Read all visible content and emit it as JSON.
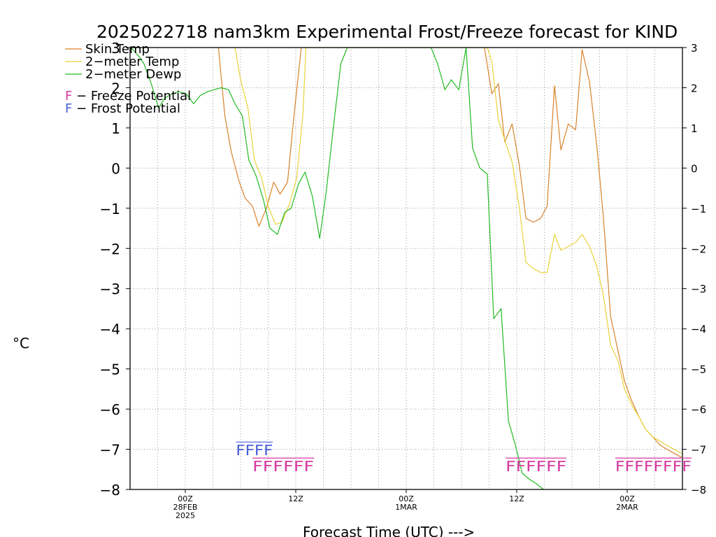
{
  "chart_data": {
    "type": "line",
    "title": "2025022718 nam3km Experimental Frost/Freeze forecast for KIND",
    "xlabel": "Forecast Time (UTC) --->",
    "ylabel": "°C",
    "ylim": [
      -8,
      3
    ],
    "xlim": [
      -6,
      54
    ],
    "x_unit": "hours since 00Z 28FEB 2025",
    "yticks": [
      "-8",
      "-7",
      "-6",
      "-5",
      "-4",
      "-3",
      "-2",
      "-1",
      "0",
      "1",
      "2",
      "3"
    ],
    "xticks": [
      {
        "x": 0,
        "label": "00Z",
        "sub1": "28FEB",
        "sub2": "2025"
      },
      {
        "x": 12,
        "label": "12Z",
        "sub1": "",
        "sub2": ""
      },
      {
        "x": 24,
        "label": "00Z",
        "sub1": "1MAR",
        "sub2": ""
      },
      {
        "x": 36,
        "label": "12Z",
        "sub1": "",
        "sub2": ""
      },
      {
        "x": 48,
        "label": "00Z",
        "sub1": "2MAR",
        "sub2": ""
      }
    ],
    "series": [
      {
        "name": "Skin Temp",
        "color": "#d9822b",
        "x": [
          3.6,
          4.3,
          5.0,
          5.8,
          6.5,
          7.3,
          8.0,
          8.8,
          9.6,
          10.3,
          11.1,
          11.8,
          12.6,
          13.1,
          32.5,
          33.3,
          34.0,
          34.7,
          35.5,
          36.3,
          37.0,
          37.8,
          38.6,
          39.3,
          40.1,
          40.8,
          41.6,
          42.4,
          43.1,
          43.9,
          44.7,
          45.4,
          46.2,
          47.0,
          47.7,
          48.5,
          49.3,
          50.0,
          50.8,
          51.6,
          52.3,
          53.1,
          53.9
        ],
        "y": [
          3.0,
          1.3,
          0.4,
          -0.3,
          -0.75,
          -0.95,
          -1.45,
          -1.0,
          -0.35,
          -0.65,
          -0.35,
          1.3,
          3.0,
          3.0,
          3.0,
          1.85,
          2.1,
          0.65,
          1.1,
          0.05,
          -1.25,
          -1.35,
          -1.25,
          -0.95,
          2.05,
          0.45,
          1.1,
          0.95,
          2.95,
          2.15,
          0.55,
          -1.2,
          -3.7,
          -4.55,
          -5.3,
          -5.8,
          -6.2,
          -6.5,
          -6.7,
          -6.9,
          -7.0,
          -7.1,
          -7.2
        ]
      },
      {
        "name": "2-meter Temp",
        "color": "#e8d43a",
        "x": [
          5.4,
          6.0,
          6.8,
          7.5,
          8.3,
          9.0,
          9.8,
          10.5,
          11.3,
          12.1,
          12.8,
          13.1,
          32.8,
          33.3,
          34.0,
          34.7,
          35.5,
          36.3,
          37.0,
          37.8,
          38.6,
          39.3,
          40.1,
          40.8,
          41.6,
          42.4,
          43.1,
          43.9,
          44.7,
          45.4,
          46.2,
          47.0,
          47.7,
          48.5,
          49.3,
          50.0,
          50.8,
          51.6,
          52.3,
          53.1,
          53.9
        ],
        "y": [
          3.0,
          2.2,
          1.5,
          0.2,
          -0.25,
          -0.95,
          -1.4,
          -1.35,
          -0.9,
          -0.25,
          1.4,
          3.0,
          3.0,
          2.65,
          1.2,
          0.7,
          0.15,
          -1.0,
          -2.35,
          -2.5,
          -2.6,
          -2.6,
          -1.65,
          -2.05,
          -1.95,
          -1.85,
          -1.65,
          -1.95,
          -2.45,
          -3.15,
          -4.4,
          -4.8,
          -5.5,
          -5.9,
          -6.2,
          -6.5,
          -6.7,
          -6.8,
          -6.9,
          -7.0,
          -7.1
        ]
      },
      {
        "name": "2-meter Dewp",
        "color": "#22bb22",
        "x": [
          -5.9,
          -5.1,
          -4.5,
          -3.7,
          -2.9,
          -2.2,
          -1.4,
          -0.7,
          0.1,
          0.9,
          1.6,
          2.4,
          3.1,
          3.9,
          4.7,
          5.4,
          6.2,
          6.9,
          7.7,
          8.5,
          9.2,
          10.0,
          10.8,
          11.5,
          12.3,
          13.0,
          13.8,
          14.6,
          15.3,
          16.1,
          16.9,
          17.6,
          18.4,
          19.1,
          19.9,
          20.7,
          21.4,
          26.7,
          27.4,
          28.2,
          28.9,
          29.7,
          30.5,
          31.2,
          32.0,
          32.8,
          33.5,
          34.3,
          35.1,
          35.8,
          36.6,
          37.4,
          38.1,
          38.9
        ],
        "y": [
          3.0,
          2.8,
          2.6,
          2.1,
          1.5,
          1.75,
          1.85,
          1.9,
          1.85,
          1.6,
          1.8,
          1.9,
          1.95,
          2.0,
          1.95,
          1.6,
          1.3,
          0.2,
          -0.2,
          -0.8,
          -1.5,
          -1.65,
          -1.1,
          -1.0,
          -0.4,
          -0.1,
          -0.7,
          -1.75,
          -0.6,
          1.05,
          2.6,
          3.0,
          3.0,
          3.0,
          3.0,
          3.0,
          3.0,
          3.0,
          2.6,
          1.95,
          2.2,
          1.95,
          3.0,
          0.5,
          0.0,
          -0.15,
          -3.75,
          -3.5,
          -6.3,
          -6.85,
          -7.6,
          -7.75,
          -7.85,
          -8.0
        ]
      }
    ],
    "legend": {
      "placement": "top-left",
      "items": [
        {
          "label": "Skin Temp",
          "color": "#d9822b"
        },
        {
          "label": "2-meter Temp",
          "color": "#e8d43a"
        },
        {
          "label": "2-meter Dewp",
          "color": "#22bb22"
        }
      ],
      "markers": [
        {
          "letter": "F",
          "text": " - Freeze Potential",
          "color": "#d63aa0"
        },
        {
          "letter": "F",
          "text": " - Frost Potential",
          "color": "#4a5fd8"
        }
      ]
    },
    "frost_markers": [
      {
        "text": "FFFF",
        "x_start": 5.5,
        "x_end": 9.5,
        "y": -7.15,
        "color": "#4a5fd8"
      }
    ],
    "freeze_markers": [
      {
        "text": "FFFFFF",
        "x_start": 7.3,
        "x_end": 14.0,
        "y": -7.55,
        "color": "#d63aa0"
      },
      {
        "text": "FFFFFF",
        "x_start": 34.8,
        "x_end": 41.4,
        "y": -7.55,
        "color": "#d63aa0"
      },
      {
        "text": "FFFFFFFF",
        "x_start": 46.7,
        "x_end": 55.0,
        "y": -7.55,
        "color": "#d63aa0"
      }
    ],
    "grid": true,
    "gridlines_x": [
      -3,
      3,
      6,
      9,
      15,
      18,
      21,
      27,
      30,
      33,
      39,
      42,
      45,
      51
    ],
    "gridlines_y": [
      -7,
      -6,
      -5,
      -4,
      -3,
      -2,
      -1,
      0,
      1,
      2
    ]
  }
}
